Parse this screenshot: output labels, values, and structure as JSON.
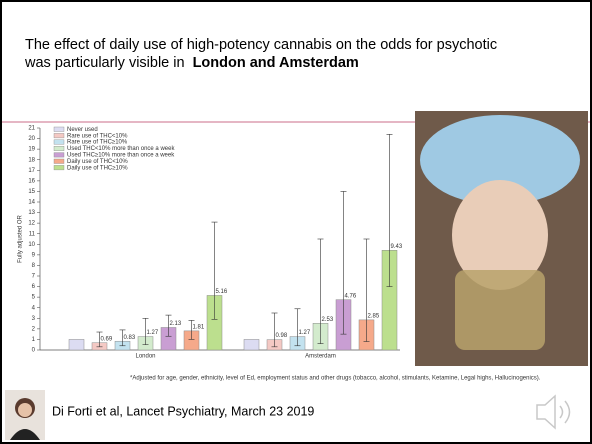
{
  "slide": {
    "title_line1": "The effect of daily use of high-potency cannabis on the odds for psychotic",
    "title_line2": "was particularly visible in",
    "title_highlight": "London and Amsterdam",
    "footnote": "*Adjusted for age, gender, ethnicity, level of Ed, employment status and other drugs (tobacco, alcohol, stimulants, Ketamine, Legal highs, Hallucinogenics).",
    "citation": "Di Forti et al, Lancet Psychiatry, March 23 2019"
  },
  "chart_data": {
    "type": "bar",
    "y_label": "Fully adjusted OR",
    "categories": [
      "London",
      "Amsterdam"
    ],
    "ylim": [
      0,
      21
    ],
    "yticks": [
      0,
      1,
      2,
      3,
      4,
      5,
      6,
      7,
      8,
      9,
      10,
      11,
      12,
      13,
      14,
      15,
      16,
      17,
      18,
      19,
      20,
      21
    ],
    "grid": false,
    "legend": "top-left",
    "series": [
      {
        "name": "Never used",
        "color": "#dcdcf2",
        "values": [
          1,
          1
        ]
      },
      {
        "name": "Rare use of THC<10%",
        "color": "#f4c9c4",
        "values": [
          0.69,
          0.98
        ],
        "lower": [
          0.3,
          0.3
        ],
        "upper": [
          1.7,
          3.5
        ]
      },
      {
        "name": "Rare use of THC≥10%",
        "color": "#c3e2ef",
        "values": [
          0.83,
          1.27
        ],
        "lower": [
          0.4,
          0.4
        ],
        "upper": [
          1.9,
          3.9
        ]
      },
      {
        "name": "Used THC<10% more than once a week",
        "color": "#d3ebcd",
        "values": [
          1.27,
          2.53
        ],
        "lower": [
          0.5,
          0.6
        ],
        "upper": [
          3.0,
          10.5
        ]
      },
      {
        "name": "Used THC≥10% more than once a week",
        "color": "#c99ed3",
        "values": [
          2.13,
          4.76
        ],
        "lower": [
          1.3,
          1.5
        ],
        "upper": [
          3.3,
          15.0
        ]
      },
      {
        "name": "Daily use of THC<10%",
        "color": "#f5a98a",
        "values": [
          1.81,
          2.85
        ],
        "lower": [
          1.0,
          0.8
        ],
        "upper": [
          2.8,
          10.5
        ]
      },
      {
        "name": "Daily use of THC≥10%",
        "color": "#bcdf8e",
        "values": [
          5.16,
          9.43
        ],
        "lower": [
          2.9,
          6.0
        ],
        "upper": [
          12.1,
          20.4
        ]
      }
    ]
  }
}
